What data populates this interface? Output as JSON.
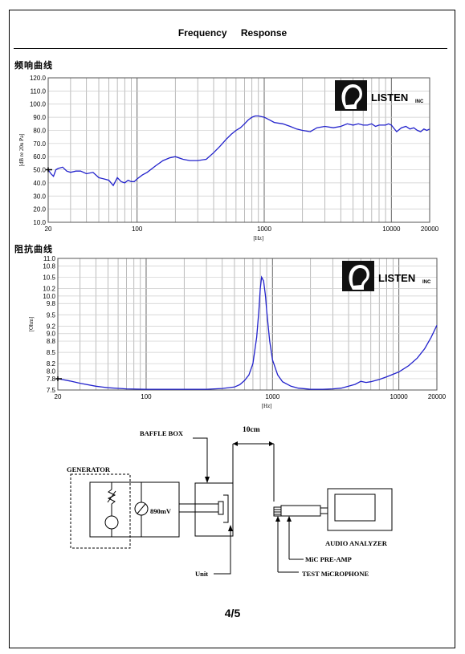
{
  "header": {
    "title": "Frequency    Response"
  },
  "chart_data": [
    {
      "type": "line",
      "title": "频响曲线",
      "xlabel": "[Hz]",
      "ylabel": "[dB re 20u Pa]",
      "xscale": "log",
      "xlim": [
        20,
        20000
      ],
      "ylim": [
        10,
        120
      ],
      "grid": true,
      "color": "#2222cc",
      "x_tick_labels": [
        "20",
        "100",
        "1000",
        "10000",
        "20000"
      ],
      "y_tick_labels": [
        "10.0",
        "20.0",
        "30.0",
        "40.0",
        "50.0",
        "60.0",
        "70.0",
        "80.0",
        "90.0",
        "100.0",
        "110.0",
        "120.0"
      ],
      "logo": "LISTEN INC",
      "series": [
        {
          "x": [
            20,
            21,
            22,
            23,
            24,
            26,
            28,
            30,
            33,
            36,
            40,
            45,
            50,
            55,
            60,
            65,
            70,
            75,
            80,
            85,
            90,
            95,
            100,
            110,
            120,
            140,
            160,
            180,
            200,
            230,
            260,
            300,
            350,
            400,
            450,
            500,
            550,
            600,
            650,
            700,
            750,
            800,
            850,
            900,
            1000,
            1100,
            1200,
            1400,
            1600,
            1800,
            2000,
            2300,
            2600,
            3000,
            3500,
            4000,
            4500,
            5000,
            5500,
            6000,
            6500,
            7000,
            7500,
            8000,
            8500,
            9000,
            9500,
            10000,
            11000,
            12000,
            13000,
            14000,
            15000,
            16000,
            17000,
            18000,
            19000,
            20000
          ],
          "y": [
            50,
            47,
            45,
            50,
            51,
            52,
            49,
            48,
            49,
            49,
            47,
            48,
            44,
            43,
            42,
            38,
            44,
            41,
            40,
            42,
            41,
            41,
            43,
            46,
            48,
            53,
            57,
            59,
            60,
            58,
            57,
            57,
            58,
            63,
            68,
            73,
            77,
            80,
            82,
            85,
            88,
            90,
            91,
            91,
            90,
            88,
            86,
            85,
            83,
            81,
            80,
            79,
            82,
            83,
            82,
            83,
            85,
            84,
            85,
            84,
            84,
            85,
            83,
            84,
            84,
            84,
            85,
            84,
            79,
            82,
            83,
            81,
            82,
            80,
            79,
            81,
            80,
            81
          ]
        }
      ]
    },
    {
      "type": "line",
      "title": "阻抗曲线",
      "xlabel": "[Hz]",
      "ylabel": "[Ohm]",
      "xscale": "log",
      "xlim": [
        20,
        20000
      ],
      "ylim": [
        7.5,
        11
      ],
      "grid": true,
      "color": "#2222cc",
      "x_tick_labels": [
        "20",
        "100",
        "1000",
        "10000",
        "20000"
      ],
      "y_tick_labels": [
        "7.5",
        "7.8",
        "8.0",
        "8.2",
        "8.5",
        "8.8",
        "9.0",
        "9.2",
        "9.5",
        "9.8",
        "10.0",
        "10.2",
        "10.5",
        "10.8",
        "11.0"
      ],
      "logo": "LISTEN INC",
      "series": [
        {
          "x": [
            20,
            25,
            30,
            40,
            50,
            70,
            100,
            150,
            200,
            300,
            400,
            500,
            550,
            600,
            650,
            700,
            750,
            780,
            800,
            820,
            850,
            880,
            900,
            950,
            1000,
            1100,
            1200,
            1400,
            1600,
            2000,
            2500,
            3000,
            3500,
            4000,
            4500,
            5000,
            5500,
            6000,
            7000,
            8000,
            10000,
            12000,
            14000,
            16000,
            18000,
            20000
          ],
          "y": [
            7.8,
            7.74,
            7.68,
            7.6,
            7.56,
            7.53,
            7.52,
            7.52,
            7.52,
            7.52,
            7.54,
            7.58,
            7.64,
            7.75,
            7.9,
            8.2,
            8.9,
            9.6,
            10.2,
            10.5,
            10.4,
            10.0,
            9.6,
            8.8,
            8.3,
            7.9,
            7.72,
            7.6,
            7.55,
            7.52,
            7.52,
            7.53,
            7.55,
            7.6,
            7.65,
            7.73,
            7.7,
            7.72,
            7.78,
            7.85,
            7.98,
            8.15,
            8.35,
            8.6,
            8.9,
            9.22
          ]
        }
      ]
    }
  ],
  "diagram": {
    "generator_label": "GENERATOR",
    "baffle_box_label": "BAFFLE BOX",
    "distance_label": "10cm",
    "voltage_label": "890mV",
    "unit_label": "Unit",
    "analyzer_label": "AUDIO ANALYZER",
    "preamp_label": "MiC PRE-AMP",
    "mic_label": "TEST MiCROPHONE"
  },
  "footer": {
    "page_number": "4/5"
  }
}
